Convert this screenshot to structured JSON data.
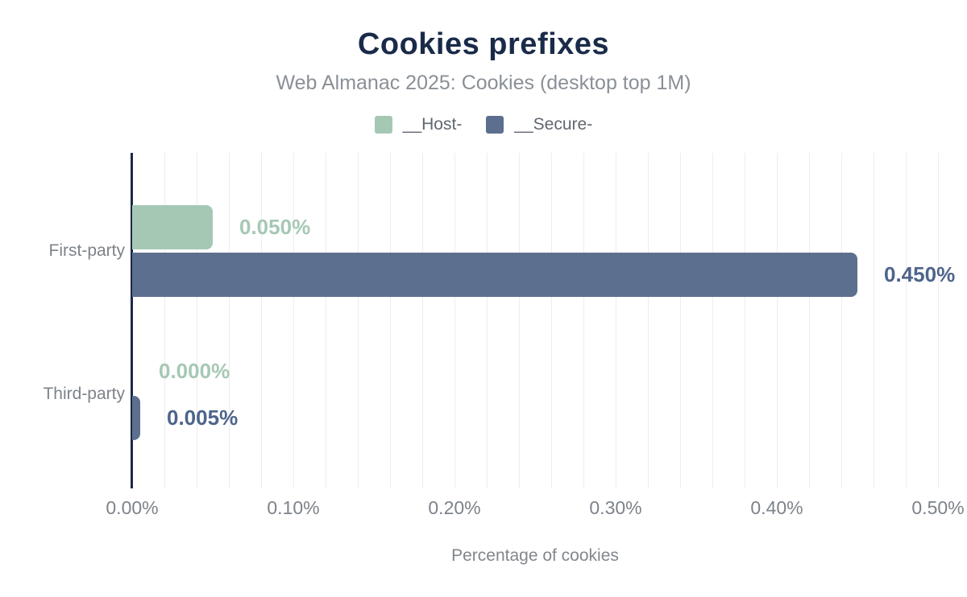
{
  "header": {
    "title": "Cookies prefixes",
    "subtitle": "Web Almanac 2025: Cookies (desktop top 1M)"
  },
  "chart_data": {
    "type": "bar",
    "orientation": "horizontal",
    "title": "Cookies prefixes",
    "subtitle": "Web Almanac 2025: Cookies (desktop top 1M)",
    "categories": [
      "First-party",
      "Third-party"
    ],
    "series": [
      {
        "name": "__Host-",
        "color": "#a5c8b5",
        "label_color": "#a5c8b5",
        "values": [
          0.05,
          0.0
        ],
        "value_labels": [
          "0.050%",
          "0.000%"
        ]
      },
      {
        "name": "__Secure-",
        "color": "#5d6f8e",
        "label_color": "#4e648b",
        "values": [
          0.45,
          0.005
        ],
        "value_labels": [
          "0.450%",
          "0.005%"
        ]
      }
    ],
    "xlabel": "Percentage of cookies",
    "ylabel": "",
    "xlim": [
      0,
      0.5
    ],
    "x_ticks": [
      "0.00%",
      "0.10%",
      "0.20%",
      "0.30%",
      "0.40%",
      "0.50%"
    ],
    "grid": "minor vertical every 0.02%",
    "legend_position": "top"
  },
  "colors": {
    "title": "#1a2b49",
    "subtitle": "#8a9097",
    "axis_line": "#1b2a48",
    "gridline": "#ededed",
    "tick_text": "#7d838a"
  }
}
